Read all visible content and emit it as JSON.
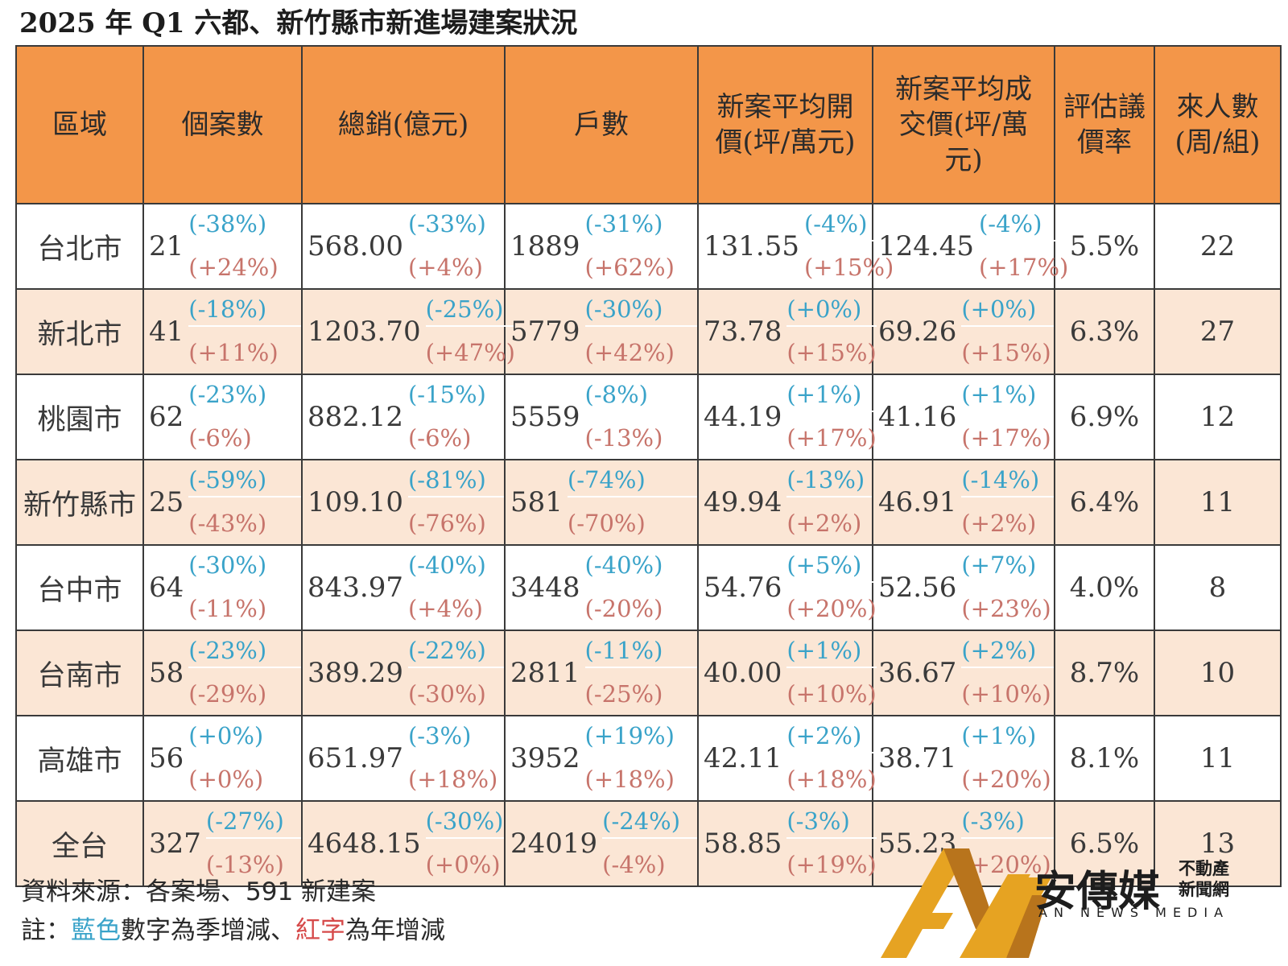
{
  "title": "2025 年 Q1 六都、新竹縣市新進場建案狀況",
  "headers": [
    "區域",
    "個案數",
    "總銷(億元)",
    "戶數",
    "新案平均開價(坪/萬元)",
    "新案平均成交價(坪/萬元)",
    "評估議價率",
    "來人數(周/組)"
  ],
  "rows": [
    {
      "region": "台北市",
      "cases": {
        "v": "21",
        "q": "(-38%)",
        "y": "(+24%)"
      },
      "sales": {
        "v": "568.00",
        "q": "(-33%)",
        "y": "(+4%)"
      },
      "units": {
        "v": "1889",
        "q": "(-31%)",
        "y": "(+62%)"
      },
      "ask": {
        "v": "131.55",
        "q": "(-4%)",
        "y": "(+15%)"
      },
      "deal": {
        "v": "124.45",
        "q": "(-4%)",
        "y": "(+17%)"
      },
      "rate": "5.5%",
      "visitors": "22"
    },
    {
      "region": "新北市",
      "cases": {
        "v": "41",
        "q": "(-18%)",
        "y": "(+11%)"
      },
      "sales": {
        "v": "1203.70",
        "q": "(-25%)",
        "y": "(+47%)"
      },
      "units": {
        "v": "5779",
        "q": "(-30%)",
        "y": "(+42%)"
      },
      "ask": {
        "v": "73.78",
        "q": "(+0%)",
        "y": "(+15%)"
      },
      "deal": {
        "v": "69.26",
        "q": "(+0%)",
        "y": "(+15%)"
      },
      "rate": "6.3%",
      "visitors": "27"
    },
    {
      "region": "桃園市",
      "cases": {
        "v": "62",
        "q": "(-23%)",
        "y": "(-6%)"
      },
      "sales": {
        "v": "882.12",
        "q": "(-15%)",
        "y": "(-6%)"
      },
      "units": {
        "v": "5559",
        "q": "(-8%)",
        "y": "(-13%)"
      },
      "ask": {
        "v": "44.19",
        "q": "(+1%)",
        "y": "(+17%)"
      },
      "deal": {
        "v": "41.16",
        "q": "(+1%)",
        "y": "(+17%)"
      },
      "rate": "6.9%",
      "visitors": "12"
    },
    {
      "region": "新竹縣市",
      "cases": {
        "v": "25",
        "q": "(-59%)",
        "y": "(-43%)"
      },
      "sales": {
        "v": "109.10",
        "q": "(-81%)",
        "y": "(-76%)"
      },
      "units": {
        "v": "581",
        "q": "(-74%)",
        "y": "(-70%)"
      },
      "ask": {
        "v": "49.94",
        "q": "(-13%)",
        "y": "(+2%)"
      },
      "deal": {
        "v": "46.91",
        "q": "(-14%)",
        "y": "(+2%)"
      },
      "rate": "6.4%",
      "visitors": "11"
    },
    {
      "region": "台中市",
      "cases": {
        "v": "64",
        "q": "(-30%)",
        "y": "(-11%)"
      },
      "sales": {
        "v": "843.97",
        "q": "(-40%)",
        "y": "(+4%)"
      },
      "units": {
        "v": "3448",
        "q": "(-40%)",
        "y": "(-20%)"
      },
      "ask": {
        "v": "54.76",
        "q": "(+5%)",
        "y": "(+20%)"
      },
      "deal": {
        "v": "52.56",
        "q": "(+7%)",
        "y": "(+23%)"
      },
      "rate": "4.0%",
      "visitors": "8"
    },
    {
      "region": "台南市",
      "cases": {
        "v": "58",
        "q": "(-23%)",
        "y": "(-29%)"
      },
      "sales": {
        "v": "389.29",
        "q": "(-22%)",
        "y": "(-30%)"
      },
      "units": {
        "v": "2811",
        "q": "(-11%)",
        "y": "(-25%)"
      },
      "ask": {
        "v": "40.00",
        "q": "(+1%)",
        "y": "(+10%)"
      },
      "deal": {
        "v": "36.67",
        "q": "(+2%)",
        "y": "(+10%)"
      },
      "rate": "8.7%",
      "visitors": "10"
    },
    {
      "region": "高雄市",
      "cases": {
        "v": "56",
        "q": "(+0%)",
        "y": "(+0%)"
      },
      "sales": {
        "v": "651.97",
        "q": "(-3%)",
        "y": "(+18%)"
      },
      "units": {
        "v": "3952",
        "q": "(+19%)",
        "y": "(+18%)"
      },
      "ask": {
        "v": "42.11",
        "q": "(+2%)",
        "y": "(+18%)"
      },
      "deal": {
        "v": "38.71",
        "q": "(+1%)",
        "y": "(+20%)"
      },
      "rate": "8.1%",
      "visitors": "11"
    },
    {
      "region": "全台",
      "cases": {
        "v": "327",
        "q": "(-27%)",
        "y": "(-13%)"
      },
      "sales": {
        "v": "4648.15",
        "q": "(-30%)",
        "y": "(+0%)"
      },
      "units": {
        "v": "24019",
        "q": "(-24%)",
        "y": "(-4%)"
      },
      "ask": {
        "v": "58.85",
        "q": "(-3%)",
        "y": "(+19%)"
      },
      "deal": {
        "v": "55.23",
        "q": "(-3%)",
        "y": "(+20%)"
      },
      "rate": "6.5%",
      "visitors": "13"
    }
  ],
  "footer": {
    "source": "資料來源：各案場、591 新建案",
    "note_prefix": "註：",
    "note_blue": "藍色",
    "note_mid": "數字為季增減、",
    "note_red": "紅字",
    "note_suffix": "為年增減"
  },
  "logo": {
    "name": "安傳媒",
    "sub": "不動產新聞網",
    "en": "AN NEWS MEDIA"
  },
  "colors": {
    "header_bg": "#f39649",
    "alt_row_bg": "#fbe6d5",
    "quarterly_change": "#3aa3c9",
    "yearly_change": "#c7746b"
  }
}
